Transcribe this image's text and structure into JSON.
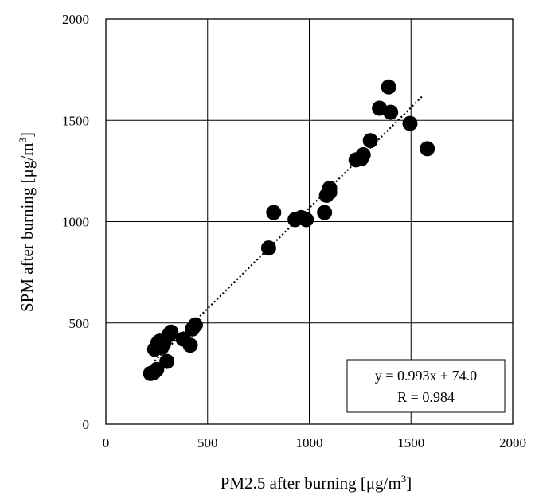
{
  "chart_data": {
    "type": "scatter",
    "xlabel": {
      "main": "PM2.5 after burning [μg/m",
      "sup": "3",
      "close": "]"
    },
    "ylabel": {
      "main": "SPM after burning [μg/m",
      "sup": "3",
      "close": "]"
    },
    "xlim": [
      0,
      2000
    ],
    "ylim": [
      0,
      2000
    ],
    "x_ticks": [
      "0",
      "500",
      "1000",
      "1500",
      "2000"
    ],
    "y_ticks": [
      "0",
      "500",
      "1000",
      "1500",
      "2000"
    ],
    "grid": true,
    "series": [
      {
        "points": [
          [
            220,
            250
          ],
          [
            235,
            255
          ],
          [
            250,
            270
          ],
          [
            240,
            370
          ],
          [
            255,
            400
          ],
          [
            265,
            410
          ],
          [
            275,
            380
          ],
          [
            285,
            400
          ],
          [
            300,
            310
          ],
          [
            310,
            440
          ],
          [
            320,
            455
          ],
          [
            380,
            420
          ],
          [
            415,
            390
          ],
          [
            425,
            470
          ],
          [
            440,
            490
          ],
          [
            800,
            870
          ],
          [
            825,
            1045
          ],
          [
            930,
            1010
          ],
          [
            960,
            1020
          ],
          [
            985,
            1010
          ],
          [
            1075,
            1045
          ],
          [
            1085,
            1130
          ],
          [
            1100,
            1145
          ],
          [
            1100,
            1165
          ],
          [
            1230,
            1305
          ],
          [
            1255,
            1310
          ],
          [
            1265,
            1330
          ],
          [
            1300,
            1400
          ],
          [
            1345,
            1560
          ],
          [
            1390,
            1665
          ],
          [
            1400,
            1540
          ],
          [
            1495,
            1485
          ],
          [
            1580,
            1360
          ]
        ]
      }
    ],
    "trendline": {
      "style": "dotted",
      "slope": 0.993,
      "intercept": 74.0,
      "x_range": [
        240,
        1560
      ]
    },
    "annotation": {
      "equation": "y = 0.993x + 74.0",
      "r_text": "R = 0.984",
      "placement": "bottom-right"
    }
  }
}
